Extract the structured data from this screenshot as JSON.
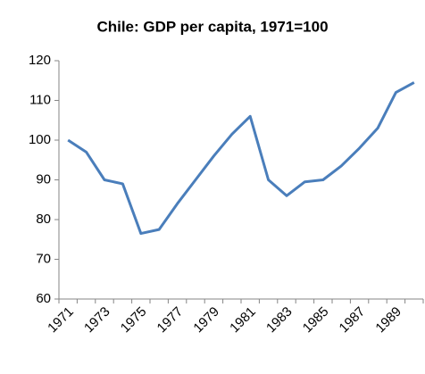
{
  "chart_data": {
    "type": "line",
    "title": "Chile: GDP per capita, 1971=100",
    "categories": [
      "1971",
      null,
      "1973",
      null,
      "1975",
      null,
      "1977",
      null,
      "1979",
      null,
      "1981",
      null,
      "1983",
      null,
      "1985",
      null,
      "1987",
      null,
      "1989",
      null
    ],
    "series": [
      {
        "name": "Chile GDP per capita",
        "color": "#4a7ebb",
        "values": [
          100,
          97,
          90,
          89,
          76.5,
          77.5,
          84,
          90,
          96,
          101.5,
          106,
          90,
          86,
          89.5,
          90,
          93.5,
          98,
          103,
          112,
          114.5
        ]
      }
    ],
    "ylim": [
      60,
      120
    ],
    "yticks": [
      60,
      70,
      80,
      90,
      100,
      110,
      120
    ],
    "grid": false
  }
}
